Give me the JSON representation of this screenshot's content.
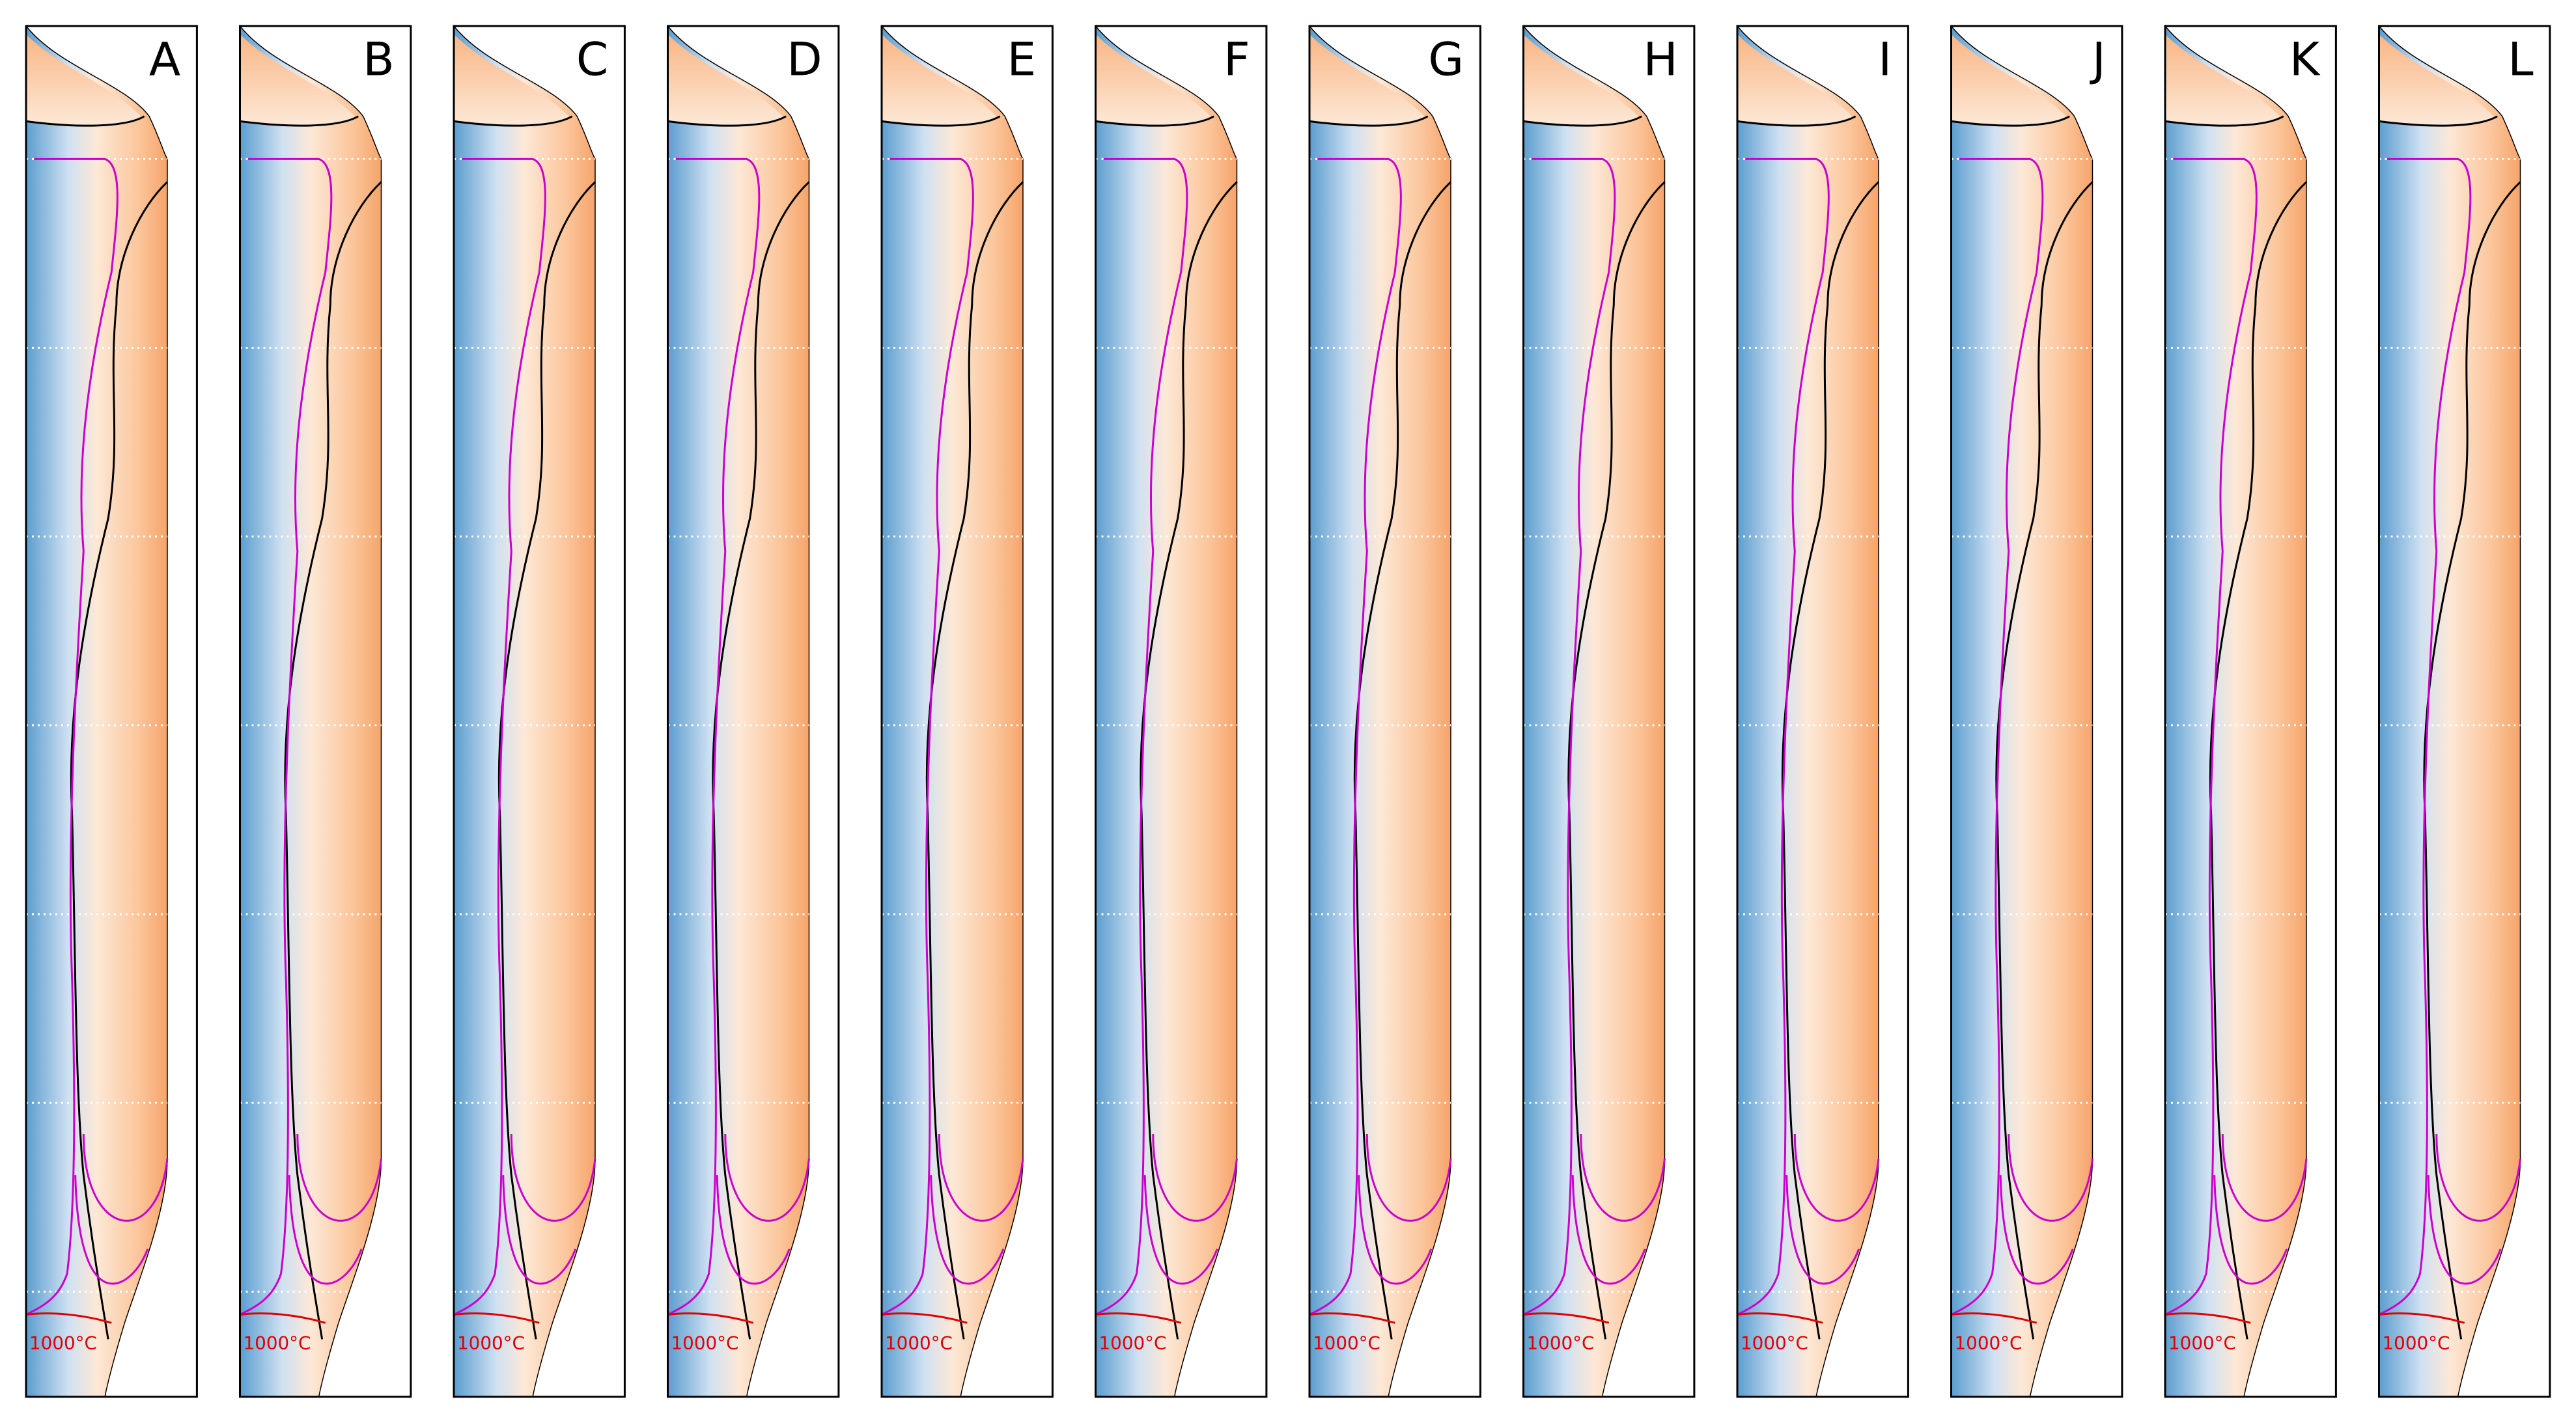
{
  "panels": [
    {
      "label": "A",
      "isotherm_label": "1000°C"
    },
    {
      "label": "B",
      "isotherm_label": "1000°C"
    },
    {
      "label": "C",
      "isotherm_label": "1000°C"
    },
    {
      "label": "D",
      "isotherm_label": "1000°C"
    },
    {
      "label": "E",
      "isotherm_label": "1000°C"
    },
    {
      "label": "F",
      "isotherm_label": "1000°C"
    },
    {
      "label": "G",
      "isotherm_label": "1000°C"
    },
    {
      "label": "H",
      "isotherm_label": "1000°C"
    },
    {
      "label": "I",
      "isotherm_label": "1000°C"
    },
    {
      "label": "J",
      "isotherm_label": "1000°C"
    },
    {
      "label": "K",
      "isotherm_label": "1000°C"
    },
    {
      "label": "L",
      "isotherm_label": "1000°C"
    }
  ]
}
